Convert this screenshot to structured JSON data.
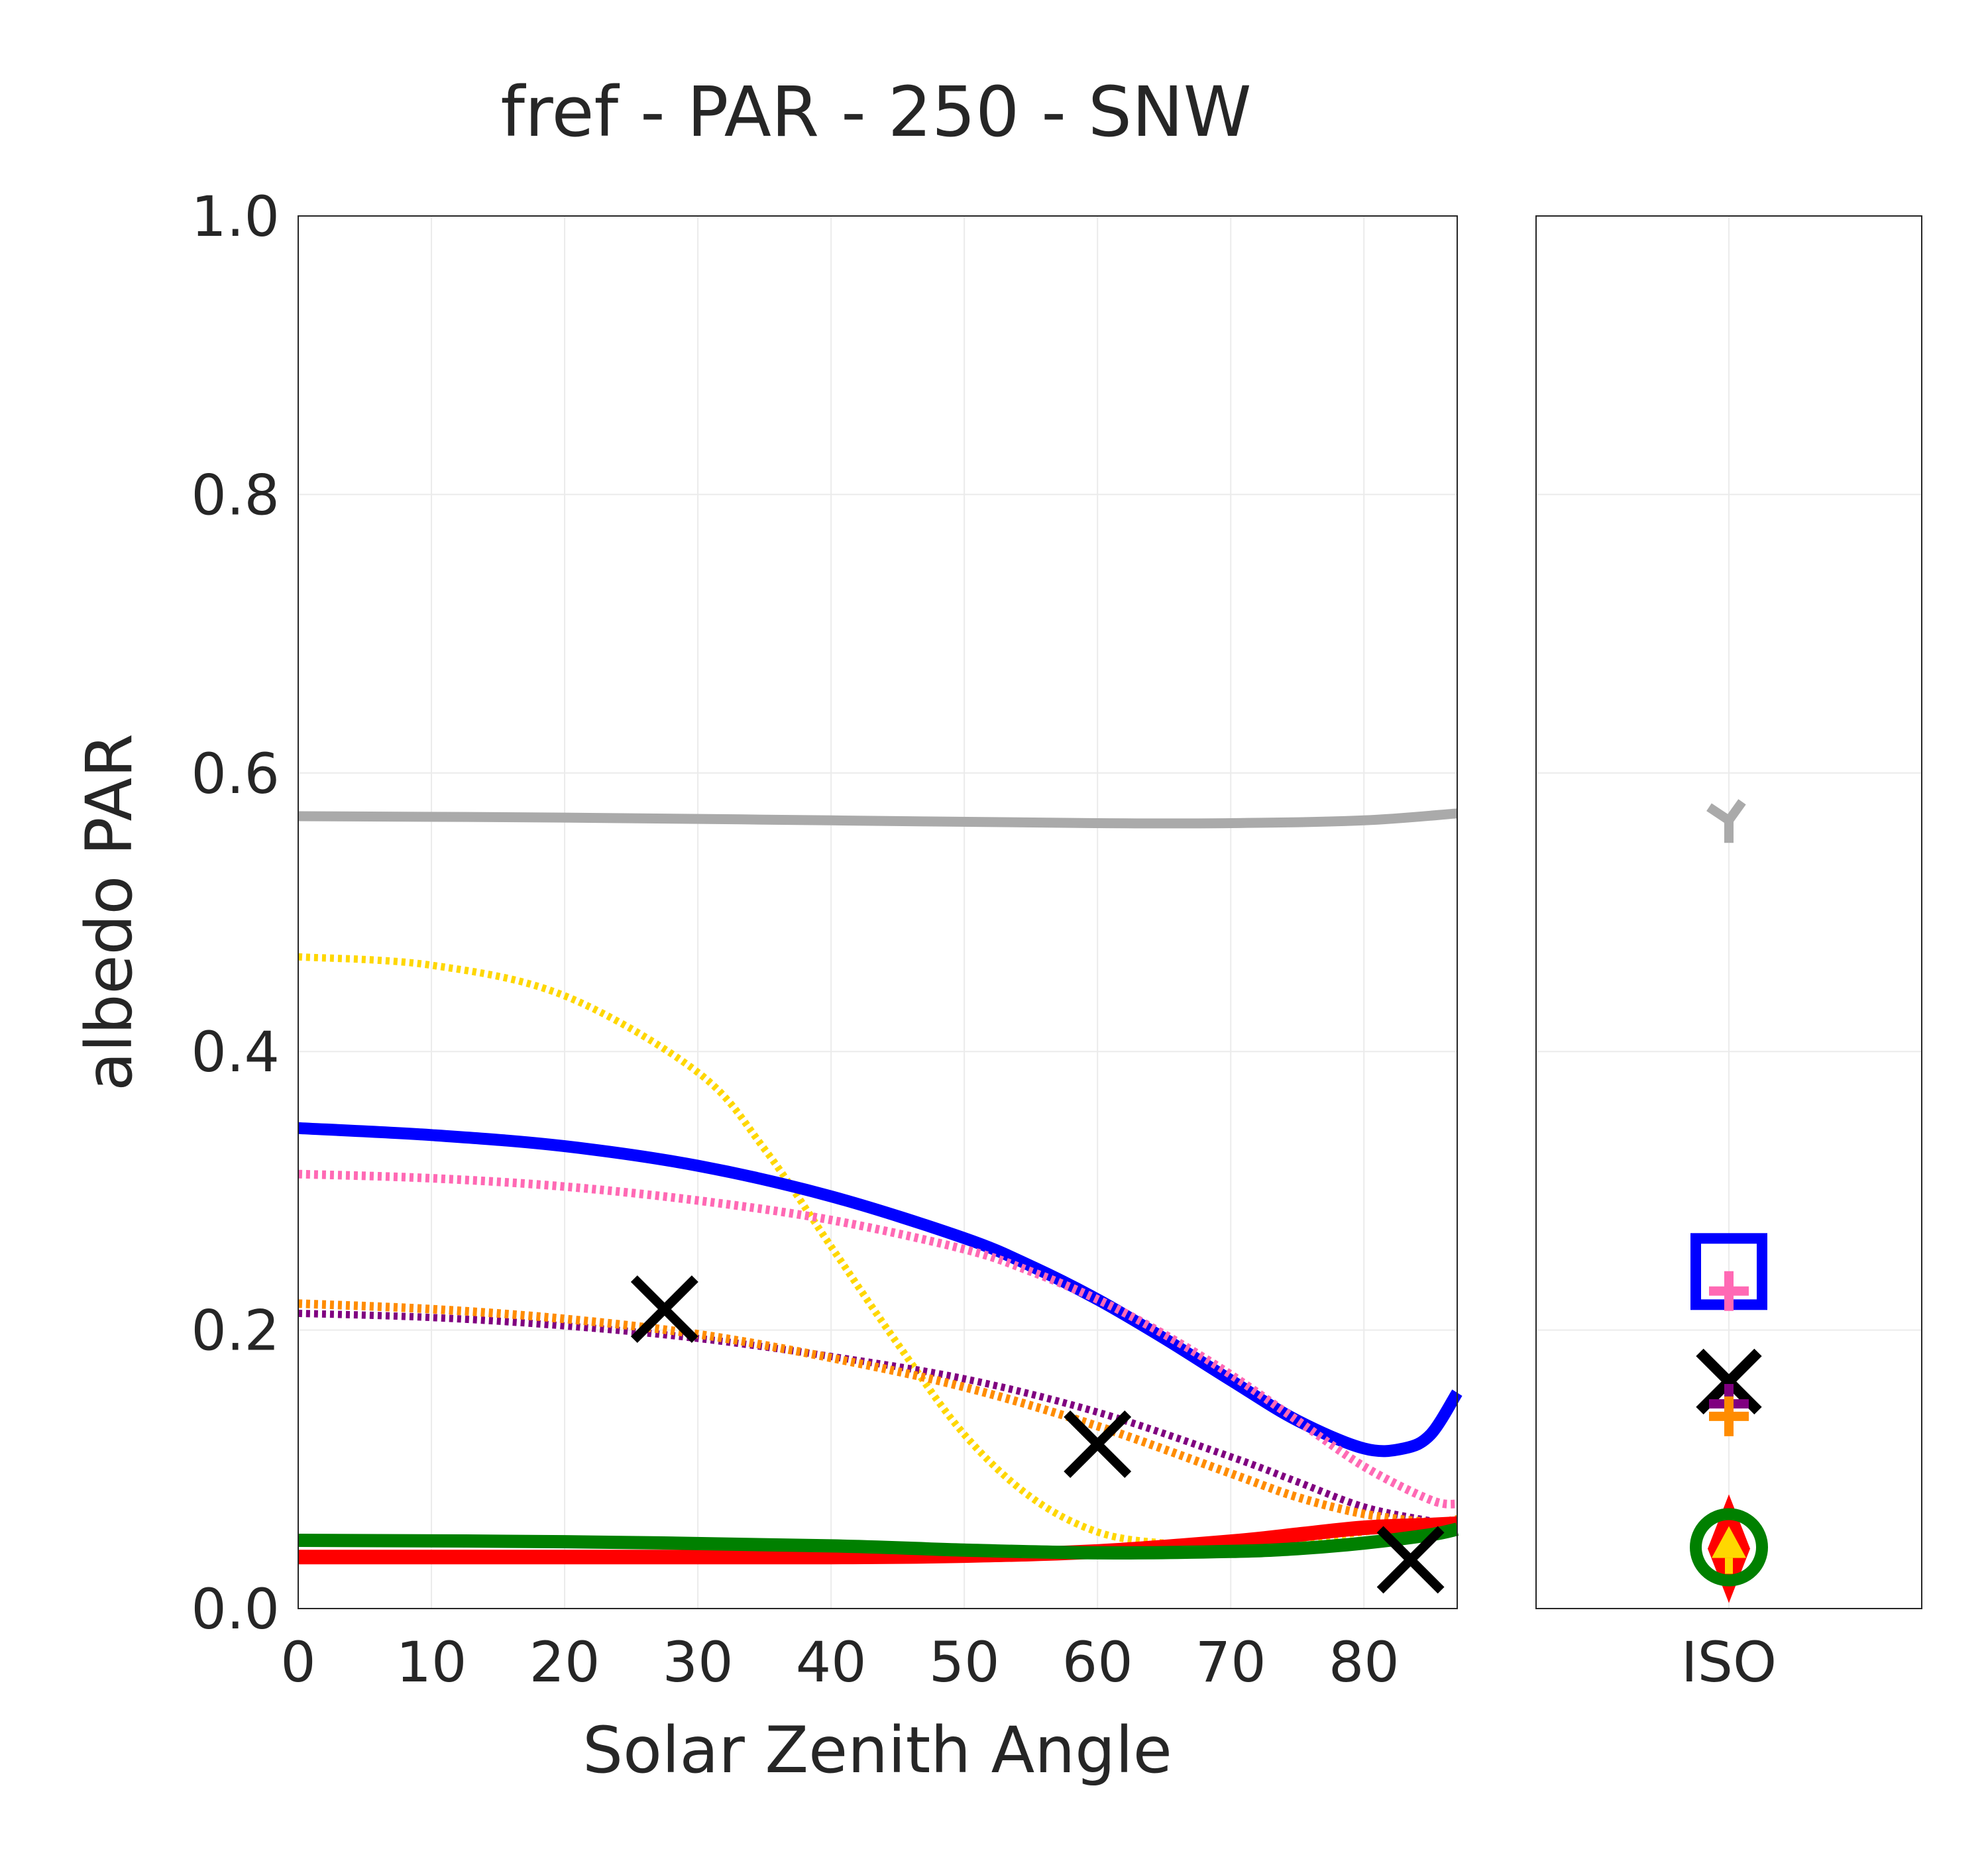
{
  "chart_data": {
    "type": "line",
    "title": "fref - PAR - 250 - SNW",
    "xlabel": "Solar Zenith Angle",
    "ylabel": "albedo PAR",
    "xlim": [
      0,
      87
    ],
    "ylim": [
      0.0,
      1.0
    ],
    "grid": true,
    "xticks": [
      "0",
      "10",
      "20",
      "30",
      "40",
      "50",
      "60",
      "70",
      "80"
    ],
    "yticks": [
      "0.0",
      "0.2",
      "0.4",
      "0.6",
      "0.8",
      "1.0"
    ],
    "side_panel_label": "ISO",
    "series": [
      {
        "color": "#aaaaaa",
        "style": "solid",
        "width": 15,
        "x": [
          0,
          20,
          40,
          60,
          70,
          80,
          87
        ],
        "y": [
          0.569,
          0.568,
          0.566,
          0.564,
          0.564,
          0.566,
          0.571
        ]
      },
      {
        "color": "#ffd700",
        "style": "dotted",
        "width": 11,
        "x": [
          0,
          10,
          20,
          30,
          35,
          40,
          45,
          50,
          55,
          60,
          65,
          70,
          75,
          80,
          87
        ],
        "y": [
          0.468,
          0.462,
          0.44,
          0.385,
          0.33,
          0.26,
          0.19,
          0.125,
          0.08,
          0.055,
          0.047,
          0.046,
          0.049,
          0.055,
          0.063
        ]
      },
      {
        "color": "#0000ff",
        "style": "solid",
        "width": 18,
        "x": [
          0,
          10,
          20,
          30,
          40,
          50,
          55,
          60,
          65,
          70,
          75,
          80,
          83,
          85,
          87
        ],
        "y": [
          0.345,
          0.34,
          0.332,
          0.318,
          0.296,
          0.266,
          0.246,
          0.222,
          0.194,
          0.164,
          0.135,
          0.115,
          0.115,
          0.125,
          0.155
        ]
      },
      {
        "color": "#ff69b4",
        "style": "dotted",
        "width": 13,
        "x": [
          0,
          10,
          20,
          30,
          40,
          50,
          55,
          60,
          65,
          70,
          75,
          80,
          85,
          87
        ],
        "y": [
          0.312,
          0.309,
          0.303,
          0.293,
          0.279,
          0.258,
          0.242,
          0.222,
          0.197,
          0.168,
          0.135,
          0.102,
          0.078,
          0.075
        ]
      },
      {
        "color": "#800080",
        "style": "dotted",
        "width": 11,
        "x": [
          0,
          10,
          20,
          30,
          40,
          50,
          60,
          70,
          75,
          80,
          85,
          87
        ],
        "y": [
          0.212,
          0.209,
          0.203,
          0.194,
          0.181,
          0.165,
          0.141,
          0.109,
          0.091,
          0.073,
          0.063,
          0.062
        ]
      },
      {
        "color": "#ff8c00",
        "style": "dotted",
        "width": 13,
        "x": [
          0,
          10,
          20,
          30,
          40,
          50,
          60,
          70,
          75,
          80,
          85,
          87
        ],
        "y": [
          0.219,
          0.215,
          0.208,
          0.197,
          0.18,
          0.159,
          0.131,
          0.097,
          0.08,
          0.068,
          0.062,
          0.064
        ]
      },
      {
        "color": "#ff0000",
        "style": "solid",
        "width": 22,
        "x": [
          0,
          20,
          40,
          50,
          60,
          70,
          75,
          80,
          85,
          87
        ],
        "y": [
          0.037,
          0.037,
          0.037,
          0.038,
          0.041,
          0.048,
          0.053,
          0.058,
          0.06,
          0.061
        ]
      },
      {
        "color": "#008000",
        "style": "solid",
        "width": 20,
        "x": [
          0,
          20,
          40,
          50,
          60,
          70,
          75,
          80,
          85,
          87
        ],
        "y": [
          0.049,
          0.048,
          0.045,
          0.042,
          0.04,
          0.041,
          0.043,
          0.047,
          0.053,
          0.057
        ]
      }
    ],
    "x_markers": {
      "color": "#000000",
      "symbol": "x",
      "points": [
        {
          "x": 27.5,
          "y": 0.215
        },
        {
          "x": 60,
          "y": 0.118
        },
        {
          "x": 83.5,
          "y": 0.035
        }
      ]
    },
    "iso_markers": [
      {
        "symbol": "tri_down",
        "color": "#aaaaaa",
        "y": 0.566
      },
      {
        "symbol": "square",
        "color": "#0000ff",
        "y": 0.242
      },
      {
        "symbol": "plus",
        "color": "#ff69b4",
        "y": 0.228
      },
      {
        "symbol": "x",
        "color": "#000000",
        "y": 0.163
      },
      {
        "symbol": "plus",
        "color": "#800080",
        "y": 0.147
      },
      {
        "symbol": "plus",
        "color": "#ff8c00",
        "y": 0.138
      },
      {
        "symbol": "diamond",
        "color": "#ff0000",
        "y": 0.043
      },
      {
        "symbol": "circle",
        "color": "#008000",
        "y": 0.044
      },
      {
        "symbol": "tri_up",
        "color": "#ffd700",
        "y": 0.043
      }
    ]
  }
}
